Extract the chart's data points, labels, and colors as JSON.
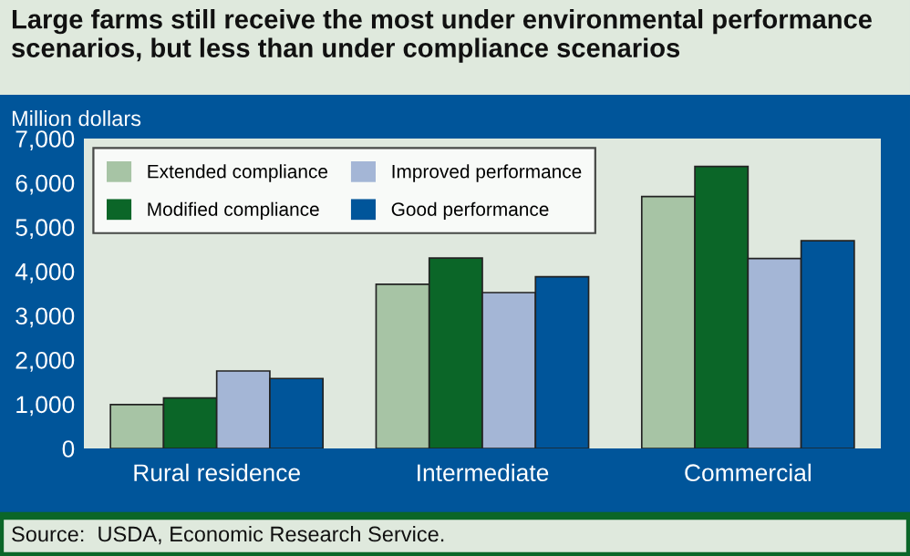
{
  "chart_data": {
    "type": "bar",
    "title": "Large farms still receive the most under environmental performance scenarios, but less than under compliance scenarios",
    "ylabel": "Million dollars",
    "categories": [
      "Rural residence",
      "Intermediate",
      "Commercial"
    ],
    "series": [
      {
        "name": "Extended compliance",
        "color": "#a7c4a5",
        "values": [
          990,
          3710,
          5690
        ]
      },
      {
        "name": "Modified compliance",
        "color": "#0b6628",
        "values": [
          1140,
          4300,
          6370
        ]
      },
      {
        "name": "Improved performance",
        "color": "#a4b6d6",
        "values": [
          1750,
          3520,
          4290
        ]
      },
      {
        "name": "Good performance",
        "color": "#00559a",
        "values": [
          1580,
          3880,
          4690
        ]
      }
    ],
    "ylim": [
      0,
      7000
    ],
    "yticks": [
      {
        "value": 0,
        "label": "0"
      },
      {
        "value": 1000,
        "label": "1,000"
      },
      {
        "value": 2000,
        "label": "2,000"
      },
      {
        "value": 3000,
        "label": "3,000"
      },
      {
        "value": 4000,
        "label": "4,000"
      },
      {
        "value": 5000,
        "label": "5,000"
      },
      {
        "value": 6000,
        "label": "6,000"
      },
      {
        "value": 7000,
        "label": "7,000"
      }
    ],
    "grid": false,
    "legend": "top left",
    "annotations": [
      "Source:  USDA, Economic Research Service."
    ]
  }
}
